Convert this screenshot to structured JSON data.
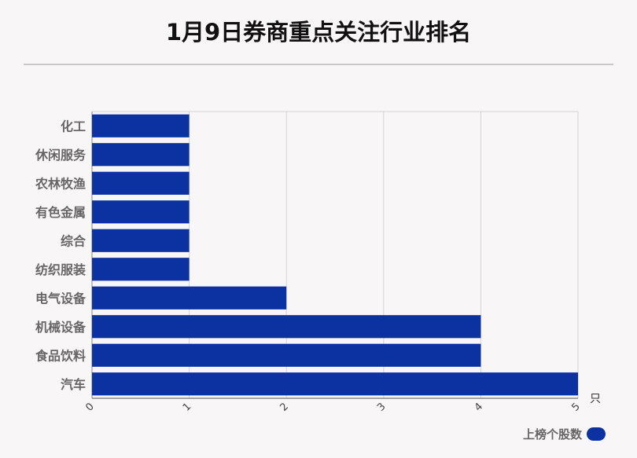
{
  "title": "1月9日券商重点关注行业排名",
  "colors": {
    "bar": "#0c32a2",
    "grid": "#d4d4d4",
    "axis": "#888888",
    "label": "#666666"
  },
  "legend": {
    "label": "上榜个股数"
  },
  "chart_data": {
    "type": "bar",
    "orientation": "horizontal",
    "title": "1月9日券商重点关注行业排名",
    "categories": [
      "化工",
      "休闲服务",
      "农林牧渔",
      "有色金属",
      "综合",
      "纺织服装",
      "电气设备",
      "机械设备",
      "食品饮料",
      "汽车"
    ],
    "series": [
      {
        "name": "上榜个股数",
        "values": [
          1,
          1,
          1,
          1,
          1,
          1,
          2,
          4,
          4,
          5
        ]
      }
    ],
    "xlim": [
      0,
      5
    ],
    "xticks": [
      "0",
      "1",
      "2",
      "3",
      "4",
      "5"
    ],
    "x_unit": "只",
    "grid": true,
    "legend_position": "bottom-right"
  }
}
